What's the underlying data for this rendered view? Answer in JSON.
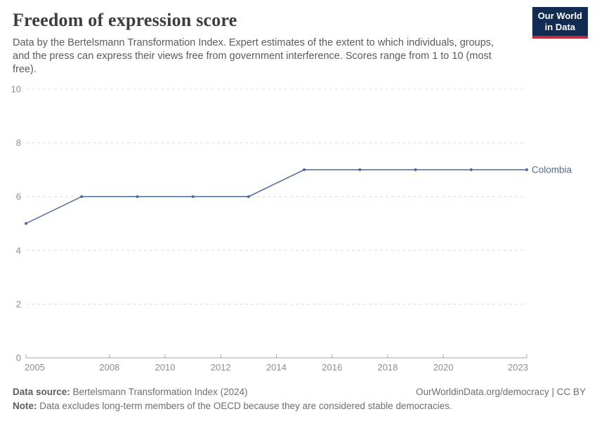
{
  "header": {
    "title": "Freedom of expression score",
    "subtitle": "Data by the Bertelsmann Transformation Index. Expert estimates of the extent to which individuals, groups, and the press can express their views free from government interference. Scores range from 1 to 10 (most free).",
    "logo": {
      "line1": "Our World",
      "line2": "in Data"
    }
  },
  "chart_data": {
    "type": "line",
    "title": "Freedom of expression score",
    "x": [
      2005,
      2007,
      2009,
      2011,
      2013,
      2015,
      2017,
      2019,
      2021,
      2023
    ],
    "series": [
      {
        "name": "Colombia",
        "color": "#4c6a9c",
        "values": [
          5,
          6,
          6,
          6,
          6,
          7,
          7,
          7,
          7,
          7
        ]
      }
    ],
    "xlim": [
      2005,
      2023
    ],
    "ylim": [
      0,
      10
    ],
    "x_ticks": [
      2005,
      2008,
      2010,
      2012,
      2014,
      2016,
      2018,
      2020,
      2023
    ],
    "y_ticks": [
      0,
      2,
      4,
      6,
      8,
      10
    ],
    "grid": "horizontal-dashed",
    "legend_position": "end-of-line-label"
  },
  "footer": {
    "source_label": "Data source:",
    "source_value": " Bertelsmann Transformation Index (2024)",
    "link": "OurWorldinData.org/democracy | CC BY",
    "note_label": "Note:",
    "note_value": " Data excludes long-term members of the OECD because they are considered stable democracies."
  },
  "colors": {
    "series_blue": "#4c6a9c",
    "logo_navy": "#122b52",
    "logo_red": "#bf2b36",
    "gridline": "#dedede",
    "axis_line": "#a5a5a5",
    "axis_label": "#8e8e8e",
    "title_text": "#3d3d3d",
    "subtitle_text": "#5b5b5b"
  }
}
